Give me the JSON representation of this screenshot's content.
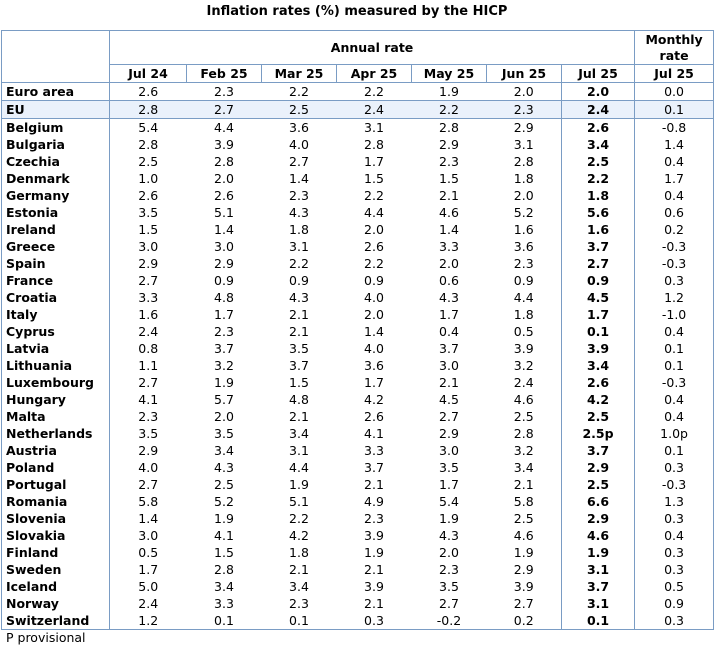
{
  "title": "Inflation rates (%) measured by the HICP",
  "header": {
    "annual_label": "Annual rate",
    "monthly_label": "Monthly rate",
    "columns": [
      "Jul 24",
      "Feb 25",
      "Mar 25",
      "Apr 25",
      "May 25",
      "Jun 25",
      "Jul 25",
      "Jul 25"
    ]
  },
  "rows": [
    {
      "country": "Euro area",
      "values": [
        "2.6",
        "2.3",
        "2.2",
        "2.2",
        "1.9",
        "2.0",
        "2.0",
        "0.0"
      ]
    },
    {
      "country": "EU",
      "values": [
        "2.8",
        "2.7",
        "2.5",
        "2.4",
        "2.2",
        "2.3",
        "2.4",
        "0.1"
      ]
    },
    {
      "country": "Belgium",
      "values": [
        "5.4",
        "4.4",
        "3.6",
        "3.1",
        "2.8",
        "2.9",
        "2.6",
        "-0.8"
      ]
    },
    {
      "country": "Bulgaria",
      "values": [
        "2.8",
        "3.9",
        "4.0",
        "2.8",
        "2.9",
        "3.1",
        "3.4",
        "1.4"
      ]
    },
    {
      "country": "Czechia",
      "values": [
        "2.5",
        "2.8",
        "2.7",
        "1.7",
        "2.3",
        "2.8",
        "2.5",
        "0.4"
      ]
    },
    {
      "country": "Denmark",
      "values": [
        "1.0",
        "2.0",
        "1.4",
        "1.5",
        "1.5",
        "1.8",
        "2.2",
        "1.7"
      ]
    },
    {
      "country": "Germany",
      "values": [
        "2.6",
        "2.6",
        "2.3",
        "2.2",
        "2.1",
        "2.0",
        "1.8",
        "0.4"
      ]
    },
    {
      "country": "Estonia",
      "values": [
        "3.5",
        "5.1",
        "4.3",
        "4.4",
        "4.6",
        "5.2",
        "5.6",
        "0.6"
      ]
    },
    {
      "country": "Ireland",
      "values": [
        "1.5",
        "1.4",
        "1.8",
        "2.0",
        "1.4",
        "1.6",
        "1.6",
        "0.2"
      ]
    },
    {
      "country": "Greece",
      "values": [
        "3.0",
        "3.0",
        "3.1",
        "2.6",
        "3.3",
        "3.6",
        "3.7",
        "-0.3"
      ]
    },
    {
      "country": "Spain",
      "values": [
        "2.9",
        "2.9",
        "2.2",
        "2.2",
        "2.0",
        "2.3",
        "2.7",
        "-0.3"
      ]
    },
    {
      "country": "France",
      "values": [
        "2.7",
        "0.9",
        "0.9",
        "0.9",
        "0.6",
        "0.9",
        "0.9",
        "0.3"
      ]
    },
    {
      "country": "Croatia",
      "values": [
        "3.3",
        "4.8",
        "4.3",
        "4.0",
        "4.3",
        "4.4",
        "4.5",
        "1.2"
      ]
    },
    {
      "country": "Italy",
      "values": [
        "1.6",
        "1.7",
        "2.1",
        "2.0",
        "1.7",
        "1.8",
        "1.7",
        "-1.0"
      ]
    },
    {
      "country": "Cyprus",
      "values": [
        "2.4",
        "2.3",
        "2.1",
        "1.4",
        "0.4",
        "0.5",
        "0.1",
        "0.4"
      ]
    },
    {
      "country": "Latvia",
      "values": [
        "0.8",
        "3.7",
        "3.5",
        "4.0",
        "3.7",
        "3.9",
        "3.9",
        "0.1"
      ]
    },
    {
      "country": "Lithuania",
      "values": [
        "1.1",
        "3.2",
        "3.7",
        "3.6",
        "3.0",
        "3.2",
        "3.4",
        "0.1"
      ]
    },
    {
      "country": "Luxembourg",
      "values": [
        "2.7",
        "1.9",
        "1.5",
        "1.7",
        "2.1",
        "2.4",
        "2.6",
        "-0.3"
      ]
    },
    {
      "country": "Hungary",
      "values": [
        "4.1",
        "5.7",
        "4.8",
        "4.2",
        "4.5",
        "4.6",
        "4.2",
        "0.4"
      ]
    },
    {
      "country": "Malta",
      "values": [
        "2.3",
        "2.0",
        "2.1",
        "2.6",
        "2.7",
        "2.5",
        "2.5",
        "0.4"
      ]
    },
    {
      "country": "Netherlands",
      "values": [
        "3.5",
        "3.5",
        "3.4",
        "4.1",
        "2.9",
        "2.8",
        "2.5p",
        "1.0p"
      ]
    },
    {
      "country": "Austria",
      "values": [
        "2.9",
        "3.4",
        "3.1",
        "3.3",
        "3.0",
        "3.2",
        "3.7",
        "0.1"
      ]
    },
    {
      "country": "Poland",
      "values": [
        "4.0",
        "4.3",
        "4.4",
        "3.7",
        "3.5",
        "3.4",
        "2.9",
        "0.3"
      ]
    },
    {
      "country": "Portugal",
      "values": [
        "2.7",
        "2.5",
        "1.9",
        "2.1",
        "1.7",
        "2.1",
        "2.5",
        "-0.3"
      ]
    },
    {
      "country": "Romania",
      "values": [
        "5.8",
        "5.2",
        "5.1",
        "4.9",
        "5.4",
        "5.8",
        "6.6",
        "1.3"
      ]
    },
    {
      "country": "Slovenia",
      "values": [
        "1.4",
        "1.9",
        "2.2",
        "2.3",
        "1.9",
        "2.5",
        "2.9",
        "0.3"
      ]
    },
    {
      "country": "Slovakia",
      "values": [
        "3.0",
        "4.1",
        "4.2",
        "3.9",
        "4.3",
        "4.6",
        "4.6",
        "0.4"
      ]
    },
    {
      "country": "Finland",
      "values": [
        "0.5",
        "1.5",
        "1.8",
        "1.9",
        "2.0",
        "1.9",
        "1.9",
        "0.3"
      ]
    },
    {
      "country": "Sweden",
      "values": [
        "1.7",
        "2.8",
        "2.1",
        "2.1",
        "2.3",
        "2.9",
        "3.1",
        "0.3"
      ]
    },
    {
      "country": "Iceland",
      "values": [
        "5.0",
        "3.4",
        "3.4",
        "3.9",
        "3.5",
        "3.9",
        "3.7",
        "0.5"
      ]
    },
    {
      "country": "Norway",
      "values": [
        "2.4",
        "3.3",
        "2.3",
        "2.1",
        "2.7",
        "2.7",
        "3.1",
        "0.9"
      ]
    },
    {
      "country": "Switzerland",
      "values": [
        "1.2",
        "0.1",
        "0.1",
        "0.3",
        "-0.2",
        "0.2",
        "0.1",
        "0.3"
      ]
    }
  ],
  "footnote": "P provisional",
  "colors": {
    "border": "#7a9cc4",
    "eu_row_bg": "#eaf1fb"
  }
}
